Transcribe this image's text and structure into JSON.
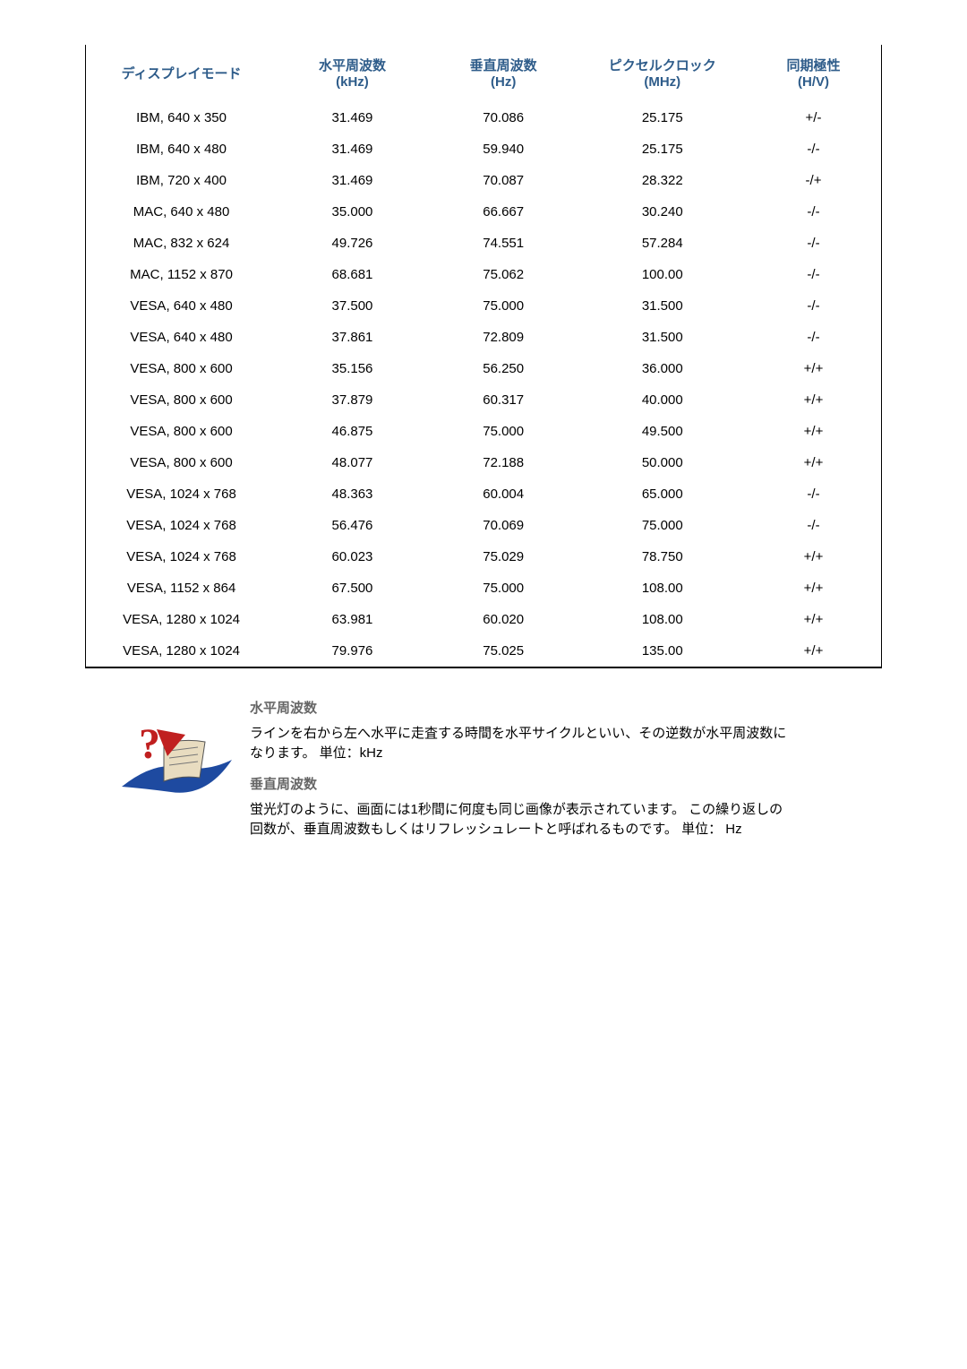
{
  "table": {
    "columns": [
      {
        "label": "ディスプレイモード",
        "unit": ""
      },
      {
        "label": "水平周波数",
        "unit": "(kHz)"
      },
      {
        "label": "垂直周波数",
        "unit": "(Hz)"
      },
      {
        "label": "ピクセルクロック",
        "unit": "(MHz)"
      },
      {
        "label": "同期極性",
        "unit": "(H/V)"
      }
    ],
    "rows": [
      {
        "mode": "IBM, 640 x 350",
        "h": "31.469",
        "v": "70.086",
        "p": "25.175",
        "s": "+/-"
      },
      {
        "mode": "IBM, 640 x 480",
        "h": "31.469",
        "v": "59.940",
        "p": "25.175",
        "s": "-/-"
      },
      {
        "mode": "IBM, 720 x 400",
        "h": "31.469",
        "v": "70.087",
        "p": "28.322",
        "s": "-/+"
      },
      {
        "mode": "MAC, 640 x 480",
        "h": "35.000",
        "v": "66.667",
        "p": "30.240",
        "s": "-/-"
      },
      {
        "mode": "MAC, 832 x 624",
        "h": "49.726",
        "v": "74.551",
        "p": "57.284",
        "s": "-/-"
      },
      {
        "mode": "MAC, 1152 x 870",
        "h": "68.681",
        "v": "75.062",
        "p": "100.00",
        "s": "-/-"
      },
      {
        "mode": "VESA, 640 x 480",
        "h": "37.500",
        "v": "75.000",
        "p": "31.500",
        "s": "-/-"
      },
      {
        "mode": "VESA, 640 x 480",
        "h": "37.861",
        "v": "72.809",
        "p": "31.500",
        "s": "-/-"
      },
      {
        "mode": "VESA, 800 x 600",
        "h": "35.156",
        "v": "56.250",
        "p": "36.000",
        "s": "+/+"
      },
      {
        "mode": "VESA, 800 x 600",
        "h": "37.879",
        "v": "60.317",
        "p": "40.000",
        "s": "+/+"
      },
      {
        "mode": "VESA, 800 x 600",
        "h": "46.875",
        "v": "75.000",
        "p": "49.500",
        "s": "+/+"
      },
      {
        "mode": "VESA, 800 x 600",
        "h": "48.077",
        "v": "72.188",
        "p": "50.000",
        "s": "+/+"
      },
      {
        "mode": "VESA, 1024 x 768",
        "h": "48.363",
        "v": "60.004",
        "p": "65.000",
        "s": "-/-"
      },
      {
        "mode": "VESA, 1024 x 768",
        "h": "56.476",
        "v": "70.069",
        "p": "75.000",
        "s": "-/-"
      },
      {
        "mode": "VESA, 1024 x 768",
        "h": "60.023",
        "v": "75.029",
        "p": "78.750",
        "s": "+/+"
      },
      {
        "mode": "VESA, 1152 x 864",
        "h": "67.500",
        "v": "75.000",
        "p": "108.00",
        "s": "+/+"
      },
      {
        "mode": "VESA, 1280 x 1024",
        "h": "63.981",
        "v": "60.020",
        "p": "108.00",
        "s": "+/+"
      },
      {
        "mode": "VESA, 1280 x 1024",
        "h": "79.976",
        "v": "75.025",
        "p": "135.00",
        "s": "+/+"
      }
    ],
    "header_color": "#2e5c8a",
    "header_fontsize": 15,
    "cell_fontsize": 15,
    "border_color": "#000000",
    "background_color": "#ffffff"
  },
  "notes": {
    "h1": {
      "title": "水平周波数",
      "body": "ラインを右から左へ水平に走査する時間を水平サイクルといい、その逆数が水平周波数になります。 単位：kHz"
    },
    "v1": {
      "title": "垂直周波数",
      "body": "蛍光灯のように、画面には1秒間に何度も同じ画像が表示されています。 この繰り返しの回数が、垂直周波数もしくはリフレッシュレートと呼ばれるものです。 単位： Hz"
    },
    "heading_color": "#666666",
    "icon_colors": {
      "swoosh": "#1e4aa0",
      "triangle": "#c02020",
      "question": "#c02020",
      "page": "#e8dcc0"
    }
  }
}
